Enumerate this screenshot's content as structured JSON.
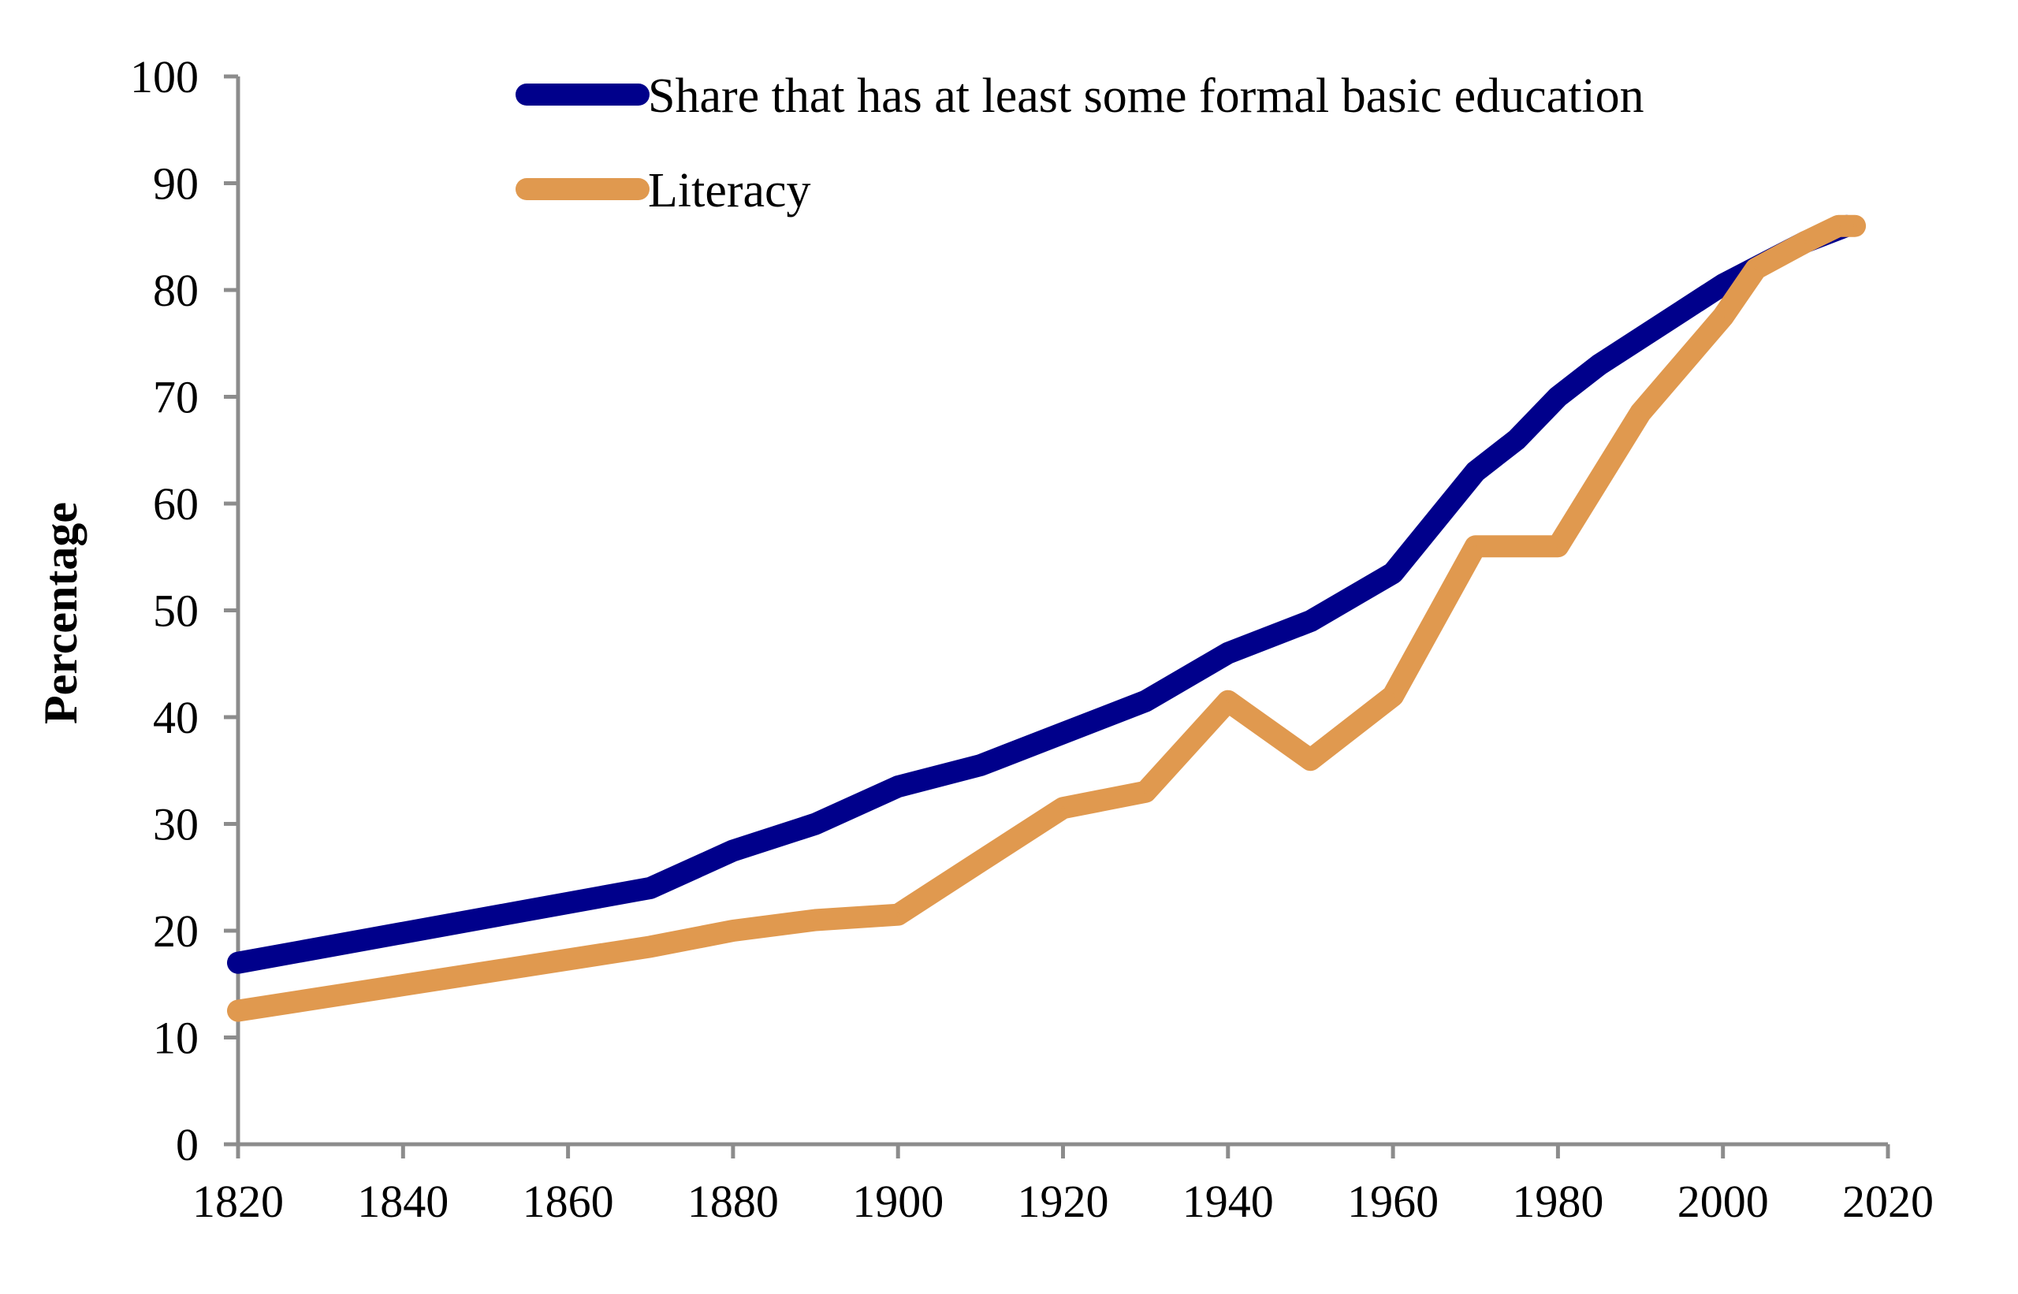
{
  "chart_data": {
    "type": "line",
    "title": "",
    "xlabel": "",
    "ylabel": "Percentage",
    "xlim": [
      1820,
      2020
    ],
    "ylim": [
      0,
      100
    ],
    "x_ticks": [
      "1820",
      "1840",
      "1860",
      "1880",
      "1900",
      "1920",
      "1940",
      "1960",
      "1980",
      "2000",
      "2020"
    ],
    "y_ticks": [
      "0",
      "10",
      "20",
      "30",
      "40",
      "50",
      "60",
      "70",
      "80",
      "90",
      "100"
    ],
    "grid": false,
    "legend_position": "top-left",
    "series": [
      {
        "name": "Share that has at least some formal basic education",
        "color": "#00008b",
        "x": [
          1820,
          1870,
          1880,
          1890,
          1900,
          1910,
          1920,
          1930,
          1940,
          1950,
          1960,
          1970,
          1975,
          1980,
          1985,
          1990,
          1995,
          2000,
          2005,
          2010,
          2015
        ],
        "y": [
          17,
          24,
          27.5,
          30,
          33.5,
          35.5,
          38.5,
          41.5,
          46,
          49,
          53.5,
          63,
          66,
          70,
          73,
          75.5,
          78,
          80.5,
          82.5,
          84.5,
          86
        ]
      },
      {
        "name": "Literacy",
        "color": "#e0994f",
        "x": [
          1820,
          1870,
          1880,
          1890,
          1900,
          1910,
          1920,
          1930,
          1940,
          1950,
          1960,
          1970,
          1980,
          1990,
          2000,
          2004,
          2010,
          2014,
          2016
        ],
        "y": [
          12.5,
          18.5,
          20,
          21,
          21.5,
          26.5,
          31.5,
          33,
          41.5,
          36,
          42,
          56,
          56,
          68.5,
          77.5,
          82,
          84.5,
          86,
          86
        ]
      }
    ]
  }
}
